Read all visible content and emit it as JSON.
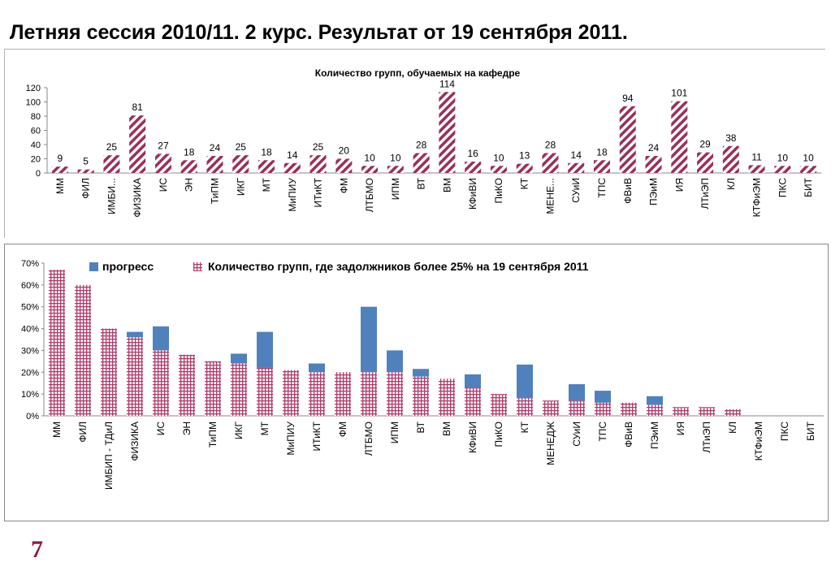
{
  "title": "Летняя сессия 2010/11.   2 курс.  Результат от 19 сентября 2011.",
  "page_number": "7",
  "colors": {
    "top_bar": "#9b2d5a",
    "hatch_red": "#b03a6a",
    "progress_blue": "#4f81bd",
    "page_number": "#8b1c3a"
  },
  "chart_data": [
    {
      "type": "bar",
      "title": "Количество групп, обучаемых на кафедре",
      "categories": [
        "ММ",
        "ФИЛ",
        "ИМБИ...",
        "ФИЗИКА",
        "ИС",
        "ЭН",
        "ТиПМ",
        "ИКГ",
        "МТ",
        "МиПИУ",
        "ИТиКТ",
        "ФМ",
        "ЛТБМО",
        "ИПМ",
        "ВТ",
        "ВМ",
        "КФиВИ",
        "ПиКО",
        "КТ",
        "МЕНЕ...",
        "СУиИ",
        "ТПС",
        "ФВиВ",
        "ПЭиМ",
        "ИЯ",
        "ЛТиЭП",
        "КЛ",
        "КТФиЭМ",
        "ПКС",
        "БИТ"
      ],
      "values": [
        9,
        5,
        25,
        81,
        27,
        18,
        24,
        25,
        18,
        14,
        25,
        20,
        10,
        10,
        28,
        114,
        16,
        10,
        13,
        28,
        14,
        18,
        94,
        24,
        101,
        29,
        38,
        11,
        10,
        10
      ],
      "ylim": [
        0,
        120
      ],
      "yticks": [
        0,
        20,
        40,
        60,
        80,
        100,
        120
      ],
      "pattern": "diagonal-hatch",
      "data_labels": true,
      "xlabel": "",
      "ylabel": ""
    },
    {
      "type": "bar",
      "stacked": true,
      "categories": [
        "ММ",
        "ФИЛ",
        "ИМБИП - ТДиЛ",
        "ФИЗИКА",
        "ИС",
        "ЭН",
        "ТиПМ",
        "ИКГ",
        "МТ",
        "МиПИУ",
        "ИТиКТ",
        "ФМ",
        "ЛТБМО",
        "ИПМ",
        "ВТ",
        "ВМ",
        "КФиВИ",
        "ПиКО",
        "КТ",
        "МЕНЕДЖ",
        "СУиИ",
        "ТПС",
        "ФВиВ",
        "ПЭиМ",
        "ИЯ",
        "ЛТиЭП",
        "КЛ",
        "КТФиЭМ",
        "ПКС",
        "БИТ"
      ],
      "series": [
        {
          "name": "Количество групп, где задолжников более  25% на 19 сентября 2011",
          "pattern": "grid",
          "values": [
            67,
            60,
            40,
            36,
            30,
            28,
            25,
            24,
            22,
            21,
            20,
            20,
            20,
            20,
            18,
            17,
            13,
            10,
            8,
            7,
            7,
            6,
            6,
            5,
            4,
            4,
            3,
            0,
            0,
            0
          ]
        },
        {
          "name": "прогресс",
          "pattern": "solid",
          "values": [
            0,
            0,
            0,
            2.5,
            11,
            0,
            0,
            4.5,
            16.5,
            0,
            4,
            0,
            30,
            10,
            3.5,
            0,
            6,
            0,
            15.5,
            0,
            7.5,
            5.5,
            0,
            4,
            0,
            0,
            0,
            0,
            0,
            0
          ]
        }
      ],
      "legend_order": [
        "прогресс",
        "Количество групп, где задолжников более  25% на 19 сентября 2011"
      ],
      "legend_position": "top",
      "ylim": [
        0,
        70
      ],
      "yticks": [
        "0%",
        "10%",
        "20%",
        "30%",
        "40%",
        "50%",
        "60%",
        "70%"
      ],
      "xlabel": "",
      "ylabel": ""
    }
  ]
}
